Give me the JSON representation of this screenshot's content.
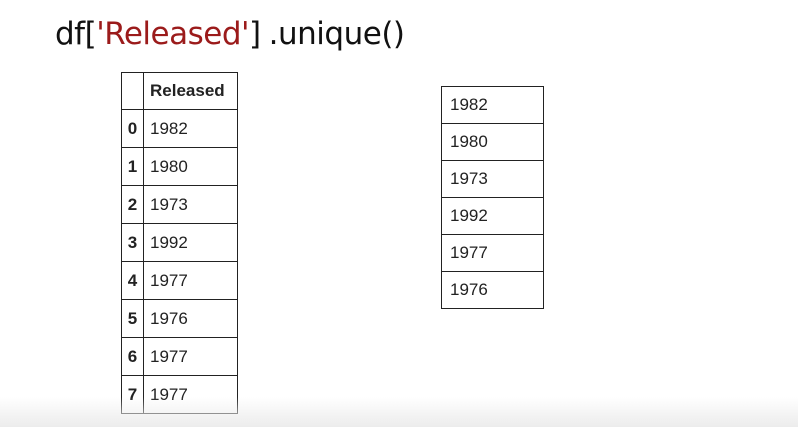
{
  "code": {
    "prefix": "df[",
    "key": "'Released'",
    "suffix": "]",
    "method": ".unique()"
  },
  "dataframe": {
    "column": "Released",
    "index": [
      "0",
      "1",
      "2",
      "3",
      "4",
      "5",
      "6",
      "7"
    ],
    "values": [
      "1982",
      "1980",
      "1973",
      "1992",
      "1977",
      "1976",
      "1977",
      "1977"
    ]
  },
  "unique_values": [
    "1982",
    "1980",
    "1973",
    "1992",
    "1977",
    "1976"
  ],
  "colors": {
    "key_text": "#9b1b1b",
    "border": "#222222"
  }
}
